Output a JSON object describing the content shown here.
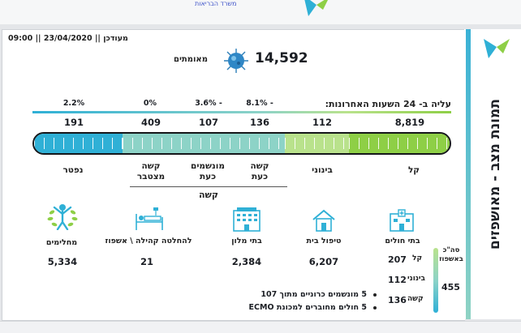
{
  "header": {
    "subtitle": "משרד הבריאות",
    "updated_label": "מעודכן",
    "date": "23/04/2020",
    "time": "09:00"
  },
  "title": "תמונת מצב - מאושפזים",
  "confirmed": {
    "value": "14,592",
    "label": "מאומתים"
  },
  "rise_label": "עליה ב- 24 השעות האחרונות:",
  "changes": [
    "8.1% -",
    "3.6% -",
    "0%",
    "2.2%"
  ],
  "totals": [
    "8,819",
    "112",
    "136",
    "107",
    "409",
    "191"
  ],
  "bar_labels": [
    "קל",
    "בינוני",
    "קשה\nכעת",
    "מונשמים\nכעת",
    "קשה\nמצטבר",
    "נפטר"
  ],
  "group_label": "קשה",
  "colors": {
    "light": "#8ecf46",
    "medium": "#b9e28c",
    "severe": "#8dd3c7",
    "deceased": "#2fb0d6"
  },
  "locations": [
    {
      "label": "בתי חולים",
      "icon": "hospital-icon",
      "value": ""
    },
    {
      "label": "טיפול בית",
      "icon": "house-icon",
      "value": "6,207"
    },
    {
      "label": "בתי מלון",
      "icon": "hotel-icon",
      "value": "2,384"
    },
    {
      "label": "להחלטה קהילה \\ אשפוז",
      "icon": "hospital-bed-icon",
      "value": "21"
    },
    {
      "label": "מחלימים",
      "icon": "recovered-person-icon",
      "value": "5,334"
    }
  ],
  "hospital_breakdown": {
    "total_label": "סה\"כ\nבאשפוז",
    "total": "455",
    "rows": [
      {
        "label": "קל",
        "value": "207"
      },
      {
        "label": "בינוני",
        "value": "112"
      },
      {
        "label": "קשה",
        "value": "136"
      }
    ]
  },
  "notes": [
    "5 מונשמים כרוניים מתוך 107",
    "5 חולים מחוברים למכונת ECMO"
  ]
}
